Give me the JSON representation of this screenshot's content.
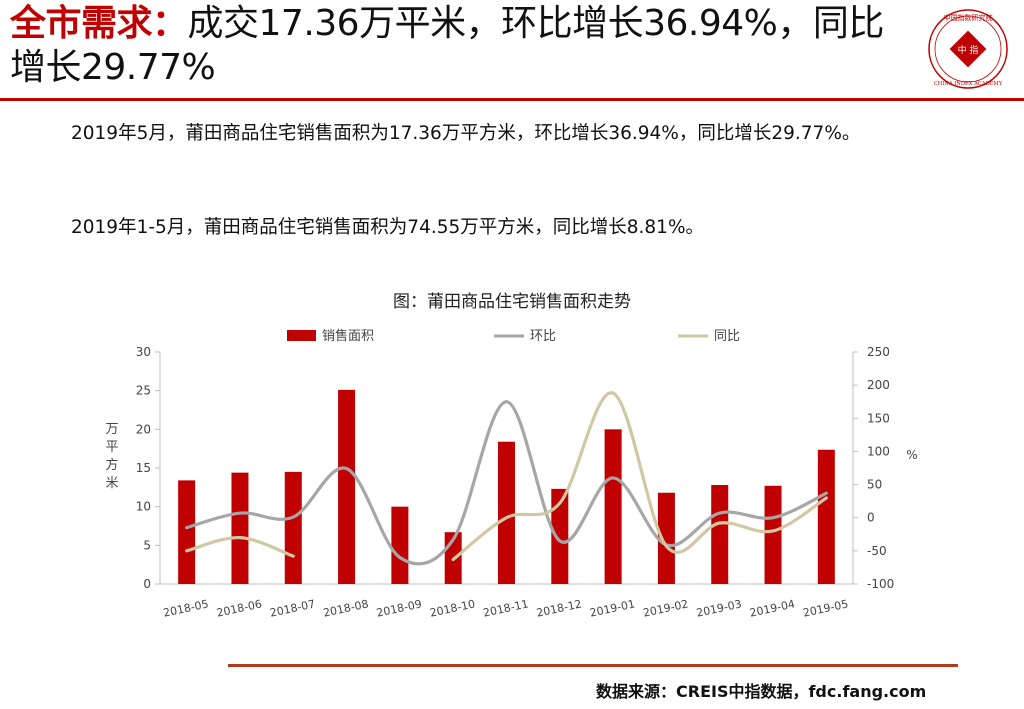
{
  "header": {
    "title_accent": "全市需求：",
    "title_rest": "成交17.36万平米，环比增长36.94%，同比增长29.77%"
  },
  "logo": {
    "top_text": "中国指数研究院",
    "center_text": "中 指",
    "bottom_text": "CHINA INDEX ACADEMY"
  },
  "body": {
    "para1": "2019年5月，莆田商品住宅销售面积为17.36万平方米，环比增长36.94%，同比增长29.77%。",
    "para2": "2019年1-5月，莆田商品住宅销售面积为74.55万平方米，同比增长8.81%。"
  },
  "chart_title": "图：莆田商品住宅销售面积走势",
  "source": "数据来源：CREIS中指数据，fdc.fang.com",
  "colors": {
    "accent": "#c00000",
    "bar": "#c00000",
    "mom": "#a6a6a6",
    "yoy": "#d1c7a3"
  },
  "chart_data": {
    "type": "bar",
    "categories": [
      "2018-05",
      "2018-06",
      "2018-07",
      "2018-08",
      "2018-09",
      "2018-10",
      "2018-11",
      "2018-12",
      "2019-01",
      "2019-02",
      "2019-03",
      "2019-04",
      "2019-05"
    ],
    "ylabel": "万平方米",
    "y2label": "%",
    "ylim": [
      0,
      30
    ],
    "y2lim": [
      -100,
      250
    ],
    "yticks": [
      0,
      5,
      10,
      15,
      20,
      25,
      30
    ],
    "y2ticks": [
      -100,
      -50,
      0,
      50,
      100,
      150,
      200,
      250
    ],
    "legend_position": "top",
    "series": [
      {
        "name": "销售面积",
        "type": "bar",
        "axis": "left",
        "values": [
          13.4,
          14.4,
          14.5,
          25.1,
          10.0,
          6.7,
          18.4,
          12.3,
          20.0,
          11.8,
          12.8,
          12.7,
          17.36
        ]
      },
      {
        "name": "环比",
        "type": "line",
        "axis": "right",
        "values": [
          -15,
          7,
          1,
          74,
          -60,
          -33,
          175,
          -35,
          60,
          -41,
          7,
          0,
          36.94
        ]
      },
      {
        "name": "同比",
        "type": "line",
        "axis": "right",
        "values": [
          -50,
          -30,
          -58,
          null,
          null,
          -63,
          0,
          22,
          188,
          -43,
          -8,
          -20,
          29.77
        ]
      }
    ]
  }
}
